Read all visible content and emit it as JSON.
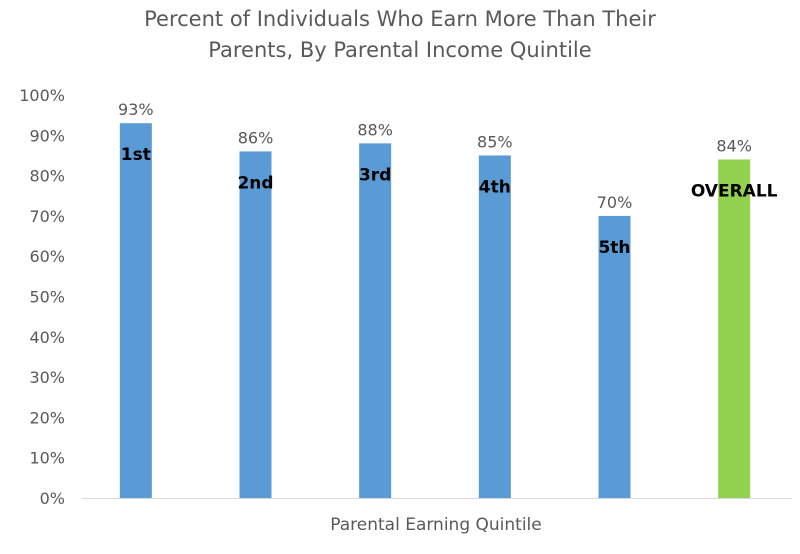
{
  "chart_data": {
    "type": "bar",
    "title_lines": [
      "Percent of Individuals Who Earn More Than Their",
      "Parents, By Parental Income Quintile"
    ],
    "xlabel": "Parental Earning Quintile",
    "ylabel": "",
    "ylim": [
      0,
      100
    ],
    "yticks": [
      0,
      10,
      20,
      30,
      40,
      50,
      60,
      70,
      80,
      90,
      100
    ],
    "ytick_labels": [
      "0%",
      "10%",
      "20%",
      "30%",
      "40%",
      "50%",
      "60%",
      "70%",
      "80%",
      "90%",
      "100%"
    ],
    "categories": [
      "1st",
      "2nd",
      "3rd",
      "4th",
      "5th",
      "OVERALL"
    ],
    "values": [
      93,
      86,
      88,
      85,
      70,
      84
    ],
    "data_labels": [
      "93%",
      "86%",
      "88%",
      "85%",
      "70%",
      "84%"
    ],
    "colors": [
      "#5b9bd5",
      "#5b9bd5",
      "#5b9bd5",
      "#5b9bd5",
      "#5b9bd5",
      "#92d050"
    ],
    "grid": false,
    "legend": "none"
  }
}
